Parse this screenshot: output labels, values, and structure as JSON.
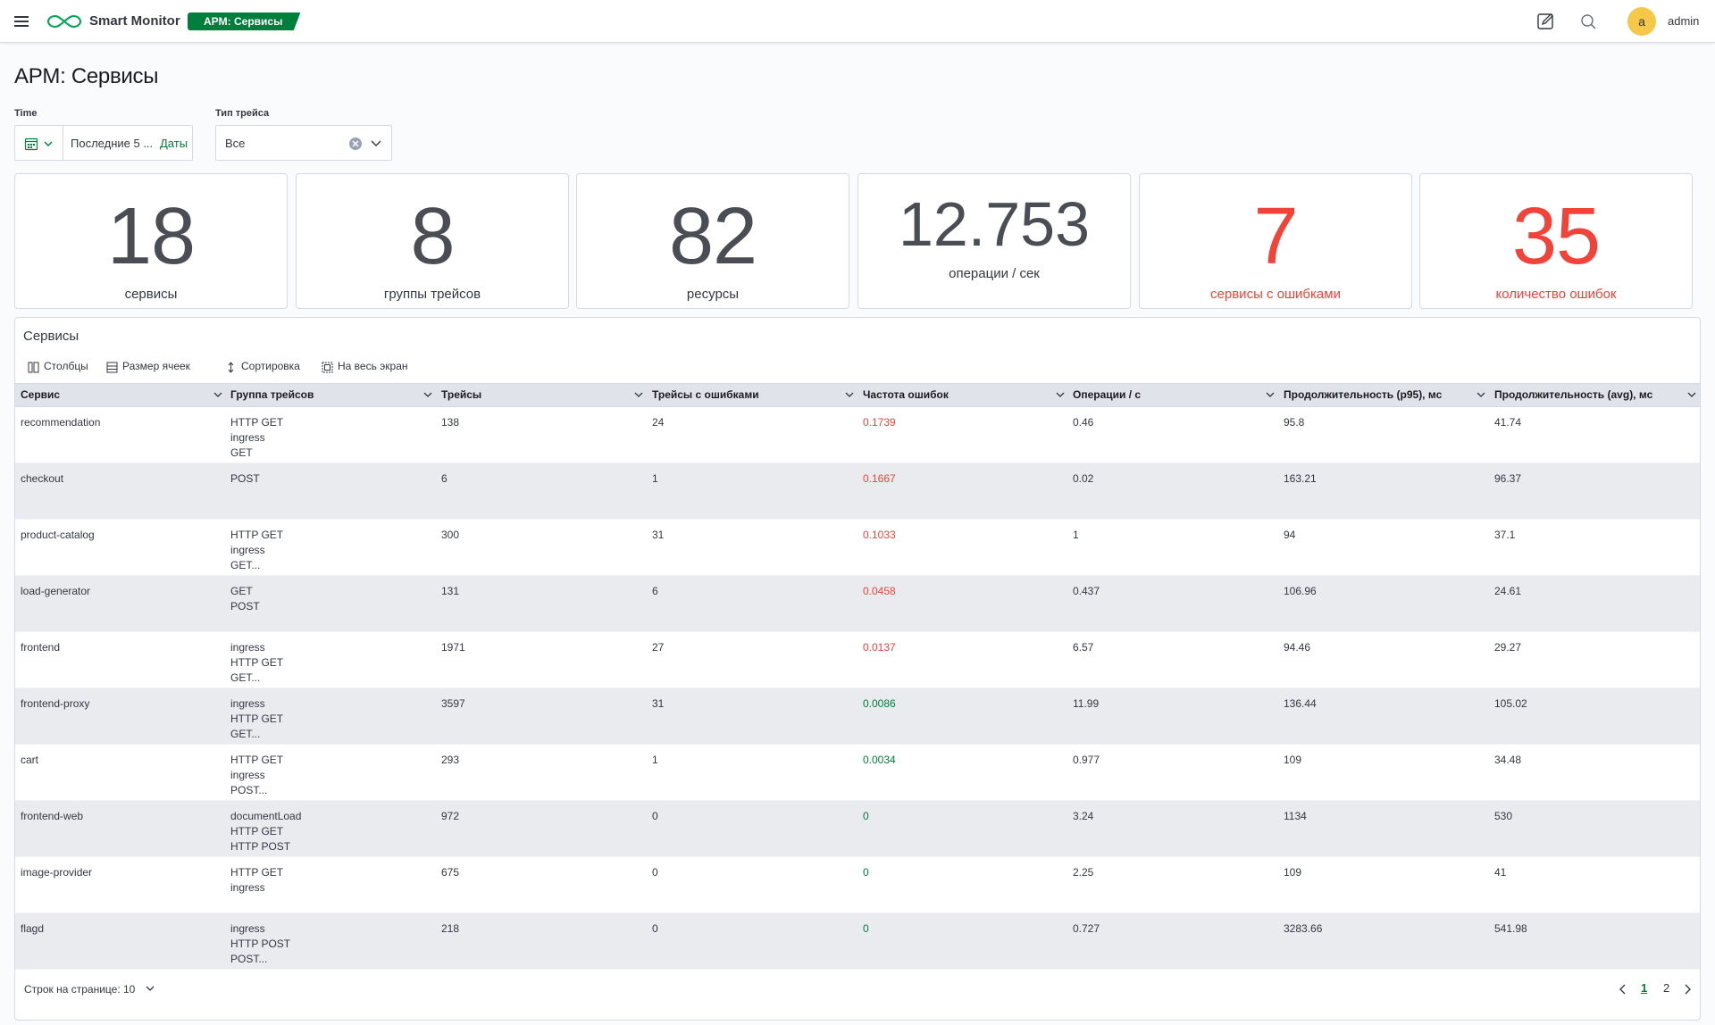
{
  "header": {
    "brand": "Smart Monitor",
    "badge": "APM: Сервисы",
    "avatar_letter": "a",
    "username": "admin"
  },
  "page": {
    "title": "APM: Сервисы"
  },
  "filters": {
    "time_label": "Time",
    "time_range": "Последние 5 ...",
    "dates_link": "Даты",
    "trace_type_label": "Тип трейса",
    "trace_type_value": "Все"
  },
  "stats": [
    {
      "value": "18",
      "label": "сервисы"
    },
    {
      "value": "8",
      "label": "группы трейсов"
    },
    {
      "value": "82",
      "label": "ресурсы"
    },
    {
      "value": "12.753",
      "label": "операции / сек"
    },
    {
      "value": "7",
      "label": "сервисы с ошибками"
    },
    {
      "value": "35",
      "label": "количество ошибок"
    }
  ],
  "table": {
    "title": "Сервисы",
    "toolbar": {
      "columns": "Столбцы",
      "cell_size": "Размер ячеек",
      "sort": "Сортировка",
      "fullscreen": "На весь экран"
    },
    "headers": [
      "Сервис",
      "Группа трейсов",
      "Трейсы",
      "Трейсы с ошибками",
      "Частота ошибок",
      "Операции / с",
      "Продолжительность (p95), мс",
      "Продолжительность (avg), мс"
    ],
    "rows": [
      {
        "service": "recommendation",
        "groups": [
          "HTTP GET",
          "ingress",
          "GET"
        ],
        "traces": "138",
        "err_traces": "24",
        "err_rate": "0.1739",
        "ops": "0.46",
        "p95": "95.8",
        "avg": "41.74"
      },
      {
        "service": "checkout",
        "groups": [
          "POST"
        ],
        "traces": "6",
        "err_traces": "1",
        "err_rate": "0.1667",
        "ops": "0.02",
        "p95": "163.21",
        "avg": "96.37"
      },
      {
        "service": "product-catalog",
        "groups": [
          "HTTP GET",
          "ingress",
          "GET..."
        ],
        "traces": "300",
        "err_traces": "31",
        "err_rate": "0.1033",
        "ops": "1",
        "p95": "94",
        "avg": "37.1"
      },
      {
        "service": "load-generator",
        "groups": [
          "GET",
          "POST"
        ],
        "traces": "131",
        "err_traces": "6",
        "err_rate": "0.0458",
        "ops": "0.437",
        "p95": "106.96",
        "avg": "24.61"
      },
      {
        "service": "frontend",
        "groups": [
          "ingress",
          "HTTP GET",
          "GET..."
        ],
        "traces": "1971",
        "err_traces": "27",
        "err_rate": "0.0137",
        "ops": "6.57",
        "p95": "94.46",
        "avg": "29.27"
      },
      {
        "service": "frontend-proxy",
        "groups": [
          "ingress",
          "HTTP GET",
          "GET..."
        ],
        "traces": "3597",
        "err_traces": "31",
        "err_rate": "0.0086",
        "ops": "11.99",
        "p95": "136.44",
        "avg": "105.02"
      },
      {
        "service": "cart",
        "groups": [
          "HTTP GET",
          "ingress",
          "POST..."
        ],
        "traces": "293",
        "err_traces": "1",
        "err_rate": "0.0034",
        "ops": "0.977",
        "p95": "109",
        "avg": "34.48"
      },
      {
        "service": "frontend-web",
        "groups": [
          "documentLoad",
          "HTTP GET",
          "HTTP POST"
        ],
        "traces": "972",
        "err_traces": "0",
        "err_rate": "0",
        "ops": "3.24",
        "p95": "1134",
        "avg": "530"
      },
      {
        "service": "image-provider",
        "groups": [
          "HTTP GET",
          "ingress"
        ],
        "traces": "675",
        "err_traces": "0",
        "err_rate": "0",
        "ops": "2.25",
        "p95": "109",
        "avg": "41"
      },
      {
        "service": "flagd",
        "groups": [
          "ingress",
          "HTTP POST",
          "POST..."
        ],
        "traces": "218",
        "err_traces": "0",
        "err_rate": "0",
        "ops": "0.727",
        "p95": "3283.66",
        "avg": "541.98"
      }
    ],
    "pagination": {
      "rows_per_page": "Строк на странице: 10",
      "pages": [
        "1",
        "2"
      ],
      "current": "1"
    }
  },
  "colors": {
    "accent": "#007e3b",
    "error": "#f0433a",
    "avatar": "#f5c84a"
  }
}
